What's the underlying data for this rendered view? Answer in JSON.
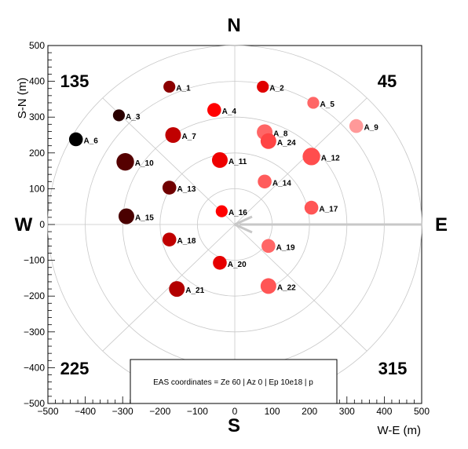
{
  "chart_data": {
    "type": "scatter",
    "title": "",
    "xlabel": "W-E (m)",
    "ylabel": "S-N (m)",
    "xlim": [
      -500,
      500
    ],
    "ylim": [
      -500,
      500
    ],
    "x_ticks": [
      -500,
      -400,
      -300,
      -200,
      -100,
      0,
      100,
      200,
      300,
      400,
      500
    ],
    "y_ticks": [
      -500,
      -400,
      -300,
      -200,
      -100,
      0,
      100,
      200,
      300,
      400,
      500
    ],
    "polar_rings_m": [
      100,
      200,
      300,
      400,
      500
    ],
    "radial_line_angles_deg": [
      45,
      135,
      225,
      315
    ],
    "compass": {
      "north": "N",
      "south": "S",
      "west": "W",
      "east": "E"
    },
    "quadrant_labels": {
      "top_left": "135",
      "top_right": "45",
      "bottom_left": "225",
      "bottom_right": "315"
    },
    "info_box": "EAS coordinates =  Ze 60 | Az 0 |  Ep 10e18 | p",
    "shower_arrow": {
      "from": [
        500,
        0
      ],
      "to": [
        0,
        0
      ],
      "color": "#c8c8c8"
    },
    "stations": [
      {
        "label": "A_1",
        "x": -175,
        "y": 385,
        "size": 3,
        "color": "#8b0000"
      },
      {
        "label": "A_2",
        "x": 75,
        "y": 385,
        "size": 3,
        "color": "#e00000"
      },
      {
        "label": "A_3",
        "x": -310,
        "y": 305,
        "size": 3,
        "color": "#2a0000"
      },
      {
        "label": "A_4",
        "x": -55,
        "y": 320,
        "size": 4,
        "color": "#ff0000"
      },
      {
        "label": "A_5",
        "x": 210,
        "y": 340,
        "size": 3,
        "color": "#ff6666"
      },
      {
        "label": "A_6",
        "x": -425,
        "y": 238,
        "size": 4,
        "color": "#000000"
      },
      {
        "label": "A_7",
        "x": -165,
        "y": 250,
        "size": 5,
        "color": "#c00000"
      },
      {
        "label": "A_8",
        "x": 80,
        "y": 258,
        "size": 5,
        "color": "#ff6666"
      },
      {
        "label": "A_9",
        "x": 325,
        "y": 275,
        "size": 4,
        "color": "#ff9999"
      },
      {
        "label": "A_10",
        "x": -293,
        "y": 175,
        "size": 6,
        "color": "#550000"
      },
      {
        "label": "A_11",
        "x": -40,
        "y": 180,
        "size": 5,
        "color": "#ee0000"
      },
      {
        "label": "A_12",
        "x": 205,
        "y": 190,
        "size": 6,
        "color": "#ff4d4d"
      },
      {
        "label": "A_13",
        "x": -175,
        "y": 103,
        "size": 4,
        "color": "#700000"
      },
      {
        "label": "A_14",
        "x": 80,
        "y": 120,
        "size": 4,
        "color": "#ff5c5c"
      },
      {
        "label": "A_15",
        "x": -290,
        "y": 23,
        "size": 5,
        "color": "#4a0000"
      },
      {
        "label": "A_16",
        "x": -35,
        "y": 37,
        "size": 3,
        "color": "#ff0000"
      },
      {
        "label": "A_17",
        "x": 205,
        "y": 47,
        "size": 4,
        "color": "#ff5555"
      },
      {
        "label": "A_18",
        "x": -175,
        "y": -42,
        "size": 4,
        "color": "#c00000"
      },
      {
        "label": "A_19",
        "x": 90,
        "y": -60,
        "size": 4,
        "color": "#ff6666"
      },
      {
        "label": "A_20",
        "x": -40,
        "y": -107,
        "size": 4,
        "color": "#e60000"
      },
      {
        "label": "A_21",
        "x": -155,
        "y": -180,
        "size": 5,
        "color": "#b30000"
      },
      {
        "label": "A_22",
        "x": 90,
        "y": -172,
        "size": 5,
        "color": "#ff5555"
      },
      {
        "label": "A_24",
        "x": 90,
        "y": 233,
        "size": 5,
        "color": "#ff4444"
      }
    ]
  }
}
